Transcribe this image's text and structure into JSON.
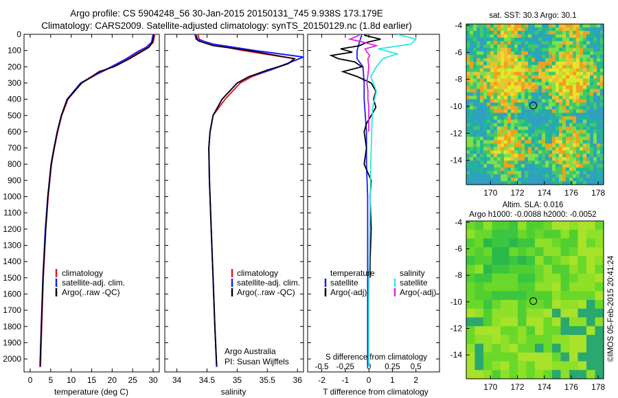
{
  "figure": {
    "title_line1": "Argo profile: CS 5904248_56 30-Jan-2015 20150131_745 9.938S 173.179E",
    "title_line2": "Climatology: CARS2009. Satellite-adjusted climatology: synTS_20150129.nc (1.8d earlier)",
    "credit_org": "Argo Australia",
    "credit_pi": "PI: Susan Wijffels",
    "stamp": "©IMOS 05-Feb-2015 20:41:24"
  },
  "colors": {
    "red": "#e41a1c",
    "blue": "#1a1aff",
    "black": "#000000",
    "cyan": "#2ee6e6",
    "magenta": "#e020e0"
  },
  "chart_data": [
    {
      "type": "line",
      "name": "temperature-profile",
      "xlabel": "temperature (deg C)",
      "xlim": [
        -1.5,
        31.5
      ],
      "ylim": [
        0,
        2080
      ],
      "xticks": [
        0,
        5,
        10,
        15,
        20,
        25,
        30
      ],
      "yticks": [
        0,
        100,
        200,
        300,
        400,
        500,
        600,
        700,
        800,
        900,
        1000,
        1100,
        1200,
        1300,
        1400,
        1500,
        1600,
        1700,
        1800,
        1900,
        2000
      ],
      "legend": [
        "climatology",
        "satellite-adj. clim.",
        "Argo(..raw -QC)"
      ],
      "series": [
        {
          "name": "climatology",
          "color": "red",
          "pressure": [
            0,
            50,
            80,
            110,
            150,
            200,
            250,
            300,
            400,
            500,
            600,
            700,
            800,
            1000,
            1200,
            1500,
            1800,
            2050
          ],
          "values": [
            30.4,
            30.0,
            28.8,
            26.5,
            24.0,
            20.0,
            16.0,
            12.5,
            9.2,
            7.7,
            6.7,
            5.9,
            5.2,
            4.4,
            3.8,
            3.2,
            2.8,
            2.5
          ]
        },
        {
          "name": "satellite-adj. clim.",
          "color": "blue",
          "pressure": [
            0,
            50,
            80,
            110,
            150,
            200,
            250,
            300,
            400,
            500,
            600,
            700,
            800,
            1000,
            1200,
            1500,
            1800,
            2050
          ],
          "values": [
            30.0,
            29.6,
            28.3,
            26.0,
            23.5,
            19.8,
            15.8,
            12.3,
            9.0,
            7.6,
            6.6,
            5.8,
            5.1,
            4.3,
            3.7,
            3.1,
            2.7,
            2.4
          ]
        },
        {
          "name": "Argo(..raw -QC)",
          "color": "black",
          "pressure": [
            5,
            50,
            80,
            110,
            150,
            200,
            230,
            260,
            300,
            400,
            500,
            600,
            800,
            1000,
            1500,
            2040
          ],
          "values": [
            30.2,
            29.8,
            29.0,
            27.0,
            24.3,
            20.5,
            16.8,
            15.0,
            12.6,
            9.1,
            7.6,
            6.6,
            5.1,
            4.3,
            3.1,
            2.4
          ]
        }
      ]
    },
    {
      "type": "line",
      "name": "salinity-profile",
      "xlabel": "salinity",
      "xlim": [
        33.8,
        36.1
      ],
      "ylim": [
        0,
        2080
      ],
      "xticks": [
        34,
        34.5,
        35,
        35.5,
        36
      ],
      "legend": [
        "climatology",
        "satellite-adj. clim.",
        "Argo(..raw -QC)"
      ],
      "series": [
        {
          "name": "climatology",
          "color": "red",
          "pressure": [
            0,
            30,
            60,
            100,
            150,
            180,
            220,
            260,
            300,
            400,
            500,
            600,
            700,
            900,
            1200,
            1500,
            1800,
            2050
          ],
          "values": [
            34.35,
            34.37,
            34.55,
            35.1,
            35.95,
            35.85,
            35.55,
            35.25,
            35.05,
            34.8,
            34.6,
            34.55,
            34.53,
            34.54,
            34.57,
            34.6,
            34.63,
            34.66
          ]
        },
        {
          "name": "satellite-adj. clim.",
          "color": "blue",
          "pressure": [
            0,
            30,
            60,
            100,
            140,
            170,
            220,
            260,
            300,
            400,
            500,
            600,
            700,
            900,
            1200,
            1500,
            1800,
            2050
          ],
          "values": [
            34.3,
            34.32,
            34.6,
            35.3,
            36.1,
            35.9,
            35.55,
            35.2,
            35.0,
            34.75,
            34.6,
            34.55,
            34.53,
            34.54,
            34.57,
            34.6,
            34.63,
            34.66
          ]
        },
        {
          "name": "Argo(..raw -QC)",
          "color": "black",
          "pressure": [
            5,
            40,
            70,
            100,
            150,
            180,
            220,
            260,
            300,
            400,
            500,
            600,
            700,
            900,
            1200,
            1500,
            1800,
            2040
          ],
          "values": [
            34.32,
            34.35,
            34.6,
            35.2,
            35.95,
            35.85,
            35.5,
            35.2,
            35.0,
            34.75,
            34.6,
            34.55,
            34.53,
            34.54,
            34.57,
            34.6,
            34.63,
            34.66
          ]
        }
      ]
    },
    {
      "type": "line",
      "name": "difference-profile",
      "xlabel": "T difference from climatology",
      "xlabel_top": "S difference from climatology",
      "xlim": [
        -2.6,
        3.0
      ],
      "xticks": [
        -2,
        -1,
        0,
        1,
        2
      ],
      "xticks_s": [
        -0.5,
        -0.25,
        0,
        0.25,
        0.5
      ],
      "legend_temperature": [
        "temperature",
        "satellite",
        "Argo(-adj)"
      ],
      "legend_salinity": [
        "salinity",
        "satellite",
        "Argo(-adj)"
      ],
      "series": [
        {
          "name": "temperature satellite",
          "color": "blue",
          "pressure": [
            0,
            50,
            100,
            150,
            200,
            300,
            400,
            600,
            800,
            1000,
            1500,
            2050
          ],
          "values": [
            -0.3,
            -0.4,
            -0.5,
            -0.5,
            -0.25,
            -0.2,
            -0.2,
            -0.1,
            -0.1,
            -0.05,
            -0.05,
            -0.05
          ]
        },
        {
          "name": "temperature Argo(-adj)",
          "color": "black",
          "pressure": [
            5,
            30,
            50,
            70,
            90,
            110,
            130,
            150,
            170,
            200,
            230,
            260,
            300,
            350,
            400,
            450,
            500,
            550,
            600,
            700,
            800,
            900,
            1000,
            1200,
            1400,
            1500
          ],
          "values": [
            -0.2,
            0.5,
            -0.1,
            -0.4,
            -1.2,
            -0.7,
            -1.6,
            -1.3,
            -0.6,
            -0.3,
            -1.1,
            -0.5,
            0.1,
            0.3,
            0.2,
            0.3,
            0.1,
            -0.1,
            -0.2,
            -0.1,
            -0.2,
            0.1,
            0.05,
            0.1,
            0.05,
            0.05
          ]
        },
        {
          "name": "salinity satellite",
          "color": "cyan",
          "pressure": [
            0,
            30,
            60,
            90,
            120,
            150,
            200,
            260,
            350,
            450,
            600,
            800,
            1200,
            1600,
            2050
          ],
          "values": [
            0.3,
            0.5,
            0.45,
            0.1,
            0.3,
            0.15,
            0.08,
            0.02,
            0.08,
            0.04,
            0.03,
            0.02,
            0.01,
            0.0,
            0.0
          ]
        },
        {
          "name": "salinity Argo(-adj)",
          "color": "magenta",
          "pressure": [
            5,
            30,
            50,
            70,
            90,
            110,
            130,
            150,
            200,
            250,
            300,
            350,
            400,
            450,
            500,
            600
          ],
          "values": [
            -0.1,
            -0.2,
            -0.05,
            0.08,
            -0.04,
            -0.02,
            0.01,
            -0.01,
            0.0,
            -0.01,
            -0.02,
            -0.01,
            -0.01,
            0.0,
            0.0,
            0.0
          ]
        }
      ]
    },
    {
      "type": "heatmap",
      "name": "sst-map",
      "title": "sat. SST: 30.3 Argo: 30.1",
      "xticks": [
        170,
        172,
        174,
        176,
        178
      ],
      "yticks": [
        -4,
        -6,
        -8,
        -10,
        -12,
        -14
      ],
      "xlim": [
        168.2,
        178.4
      ],
      "ylim": [
        -15.8,
        -3.9
      ],
      "marker": {
        "lon": 173.179,
        "lat": -9.938
      }
    },
    {
      "type": "heatmap",
      "name": "sla-map",
      "title_line1": "Altim. SLA: 0.016",
      "title_line2": "Argo h1000: -0.0088 h2000: -0.0052",
      "xticks": [
        170,
        172,
        174,
        176,
        178
      ],
      "yticks": [
        -4,
        -6,
        -8,
        -10,
        -12,
        -14
      ],
      "xlim": [
        168.2,
        178.4
      ],
      "ylim": [
        -15.8,
        -3.9
      ],
      "marker": {
        "lon": 173.179,
        "lat": -9.938
      }
    }
  ]
}
